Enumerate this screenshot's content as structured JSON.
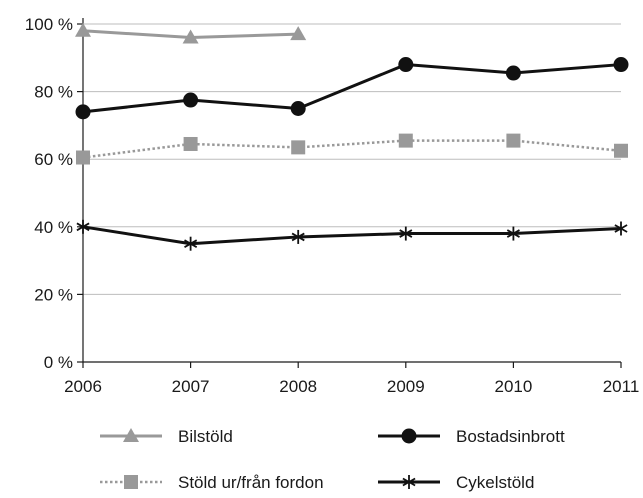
{
  "chart_data": {
    "type": "line",
    "title": "",
    "xlabel": "",
    "ylabel": "",
    "x": [
      2006,
      2007,
      2008,
      2009,
      2010,
      2011
    ],
    "x_tick_labels": [
      "2006",
      "2007",
      "2008",
      "2009",
      "2010",
      "2011"
    ],
    "ylim": [
      0,
      100
    ],
    "y_ticks": [
      0,
      20,
      40,
      60,
      80,
      100
    ],
    "y_tick_labels": [
      "0 %",
      "20 %",
      "40 %",
      "60 %",
      "80 %",
      "100 %"
    ],
    "grid": "horizontal",
    "legend_position": "bottom",
    "series": [
      {
        "name": "Bilstöld",
        "key": "bilstold",
        "color": "#999999",
        "marker": "triangle",
        "line_style": "solid",
        "values": [
          98,
          96,
          97,
          null,
          null,
          null
        ]
      },
      {
        "name": "Bostadsinbrott",
        "key": "bostadsinbrott",
        "color": "#111111",
        "marker": "circle",
        "line_style": "solid",
        "values": [
          74,
          77.5,
          75,
          88,
          85.5,
          88
        ]
      },
      {
        "name": "Stöld ur/från fordon",
        "key": "stold-ur-fran-fordon",
        "color": "#999999",
        "marker": "square",
        "line_style": "dotted",
        "values": [
          60.5,
          64.5,
          63.5,
          65.5,
          65.5,
          62.5
        ]
      },
      {
        "name": "Cykelstöld",
        "key": "cykelstold",
        "color": "#111111",
        "marker": "asterisk",
        "line_style": "solid",
        "values": [
          40,
          35,
          37,
          38,
          38,
          39.5
        ]
      }
    ]
  }
}
